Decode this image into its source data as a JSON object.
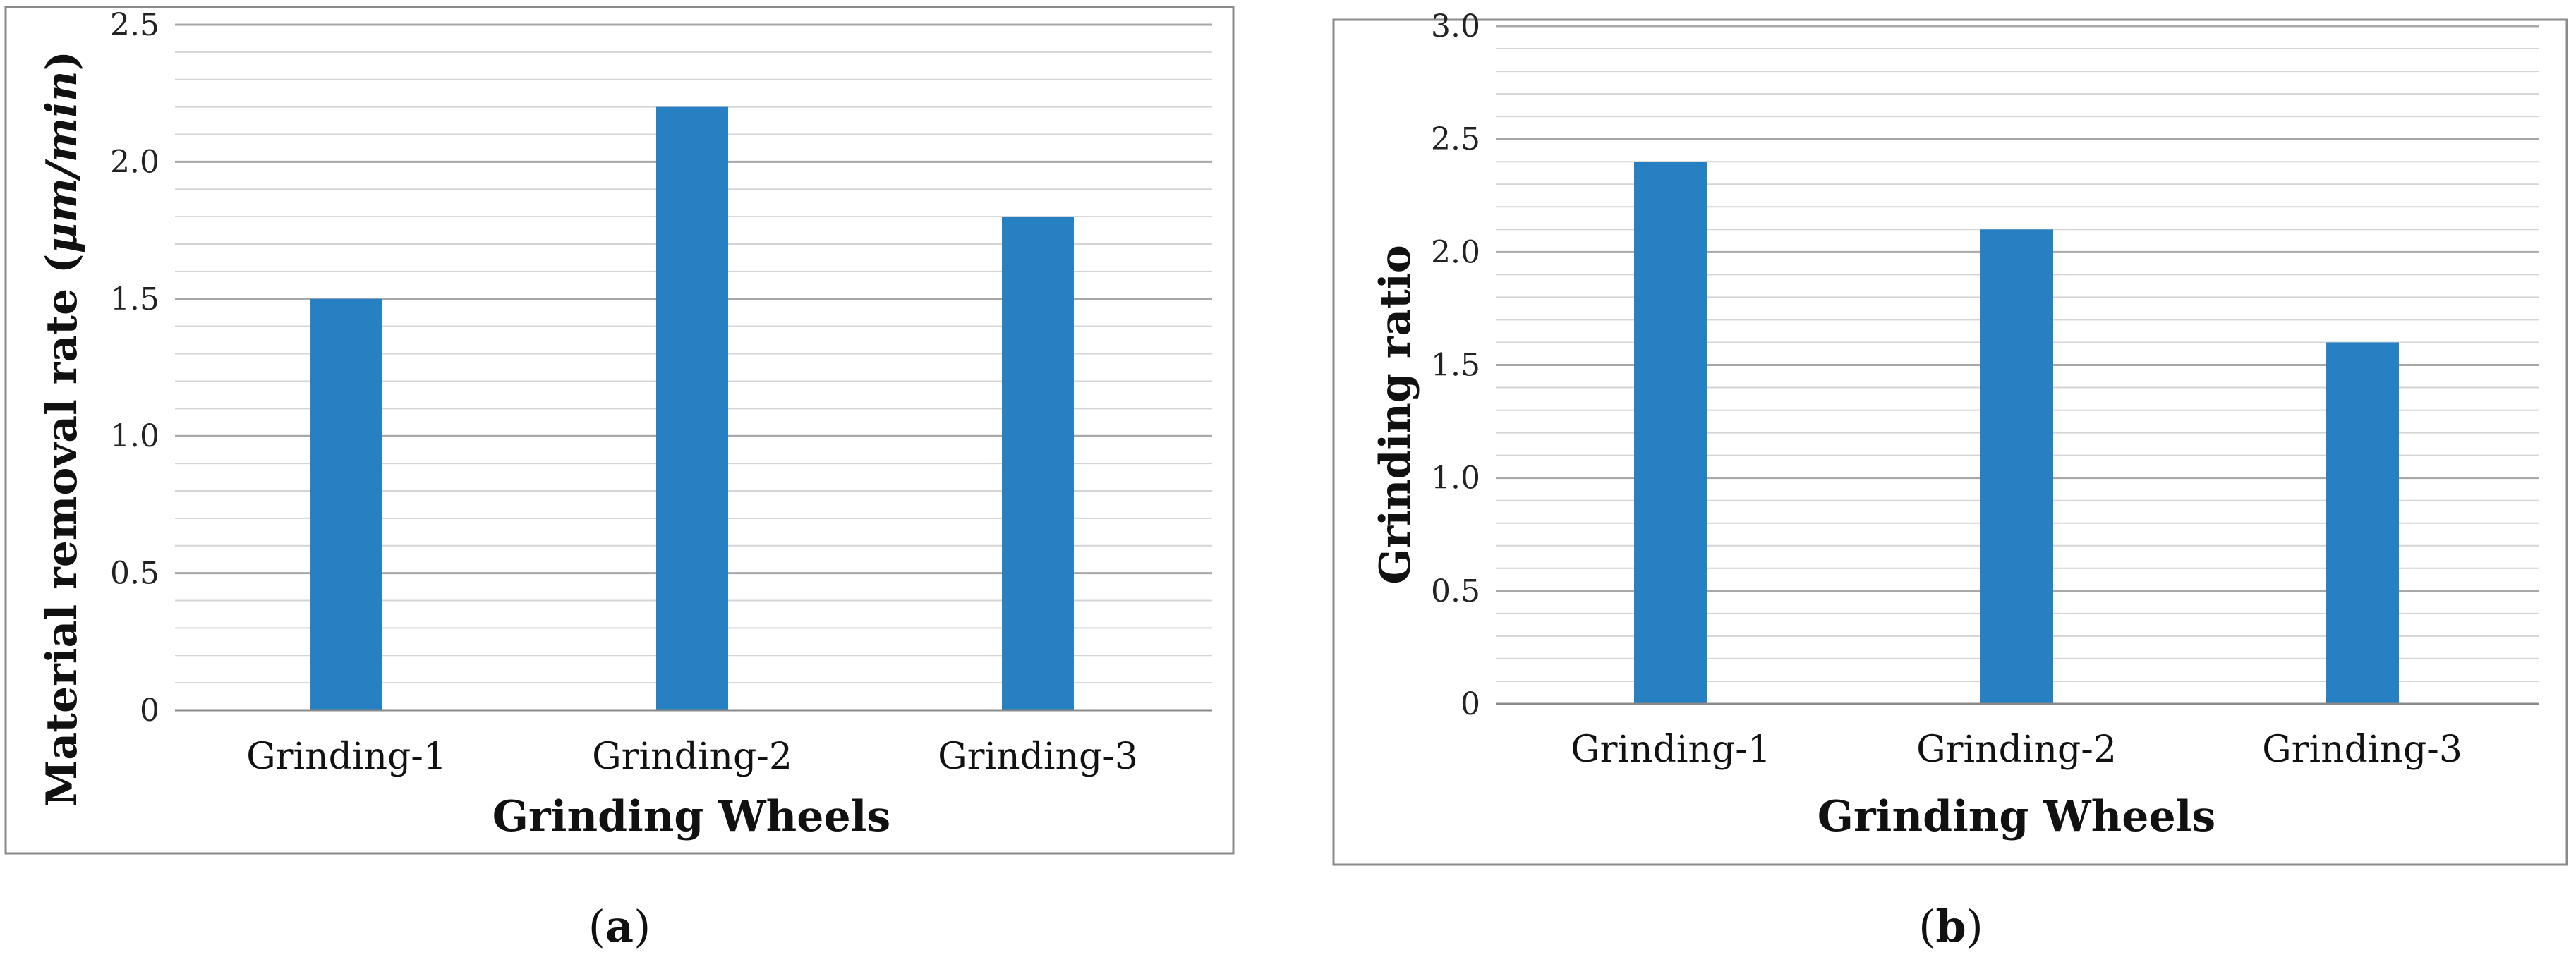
{
  "colors": {
    "bar": "#2680c2",
    "grid_major": "#a8a8a8",
    "grid_minor": "#d4d4d4",
    "frame": "#8a8a8a"
  },
  "panels": [
    {
      "caption_open": "(",
      "caption_label": "a",
      "caption_close": ")"
    },
    {
      "caption_open": "(",
      "caption_label": "b",
      "caption_close": ")"
    }
  ],
  "chart_data": [
    {
      "type": "bar",
      "title": "",
      "categories": [
        "Grinding-1",
        "Grinding-2",
        "Grinding-3"
      ],
      "values": [
        1.5,
        2.2,
        1.8
      ],
      "xlabel": "Grinding Wheels",
      "ylabel_prefix": "Material removal rate (",
      "ylabel_unit": "μm/min",
      "ylabel_suffix": ")",
      "ylim": [
        0,
        2.5
      ],
      "major_step": 0.5,
      "minor_step": 0.1,
      "ytick_labels": [
        "0",
        "0.5",
        "1.0",
        "1.5",
        "2.0",
        "2.5"
      ],
      "grid": true,
      "legend": "none"
    },
    {
      "type": "bar",
      "title": "",
      "categories": [
        "Grinding-1",
        "Grinding-2",
        "Grinding-3"
      ],
      "values": [
        2.4,
        2.1,
        1.6
      ],
      "xlabel": "Grinding Wheels",
      "ylabel": "Grinding ratio",
      "ylim": [
        0,
        3.0
      ],
      "major_step": 0.5,
      "minor_step": 0.1,
      "ytick_labels": [
        "0",
        "0.5",
        "1.0",
        "1.5",
        "2.0",
        "2.5",
        "3.0"
      ],
      "grid": true,
      "legend": "none"
    }
  ]
}
